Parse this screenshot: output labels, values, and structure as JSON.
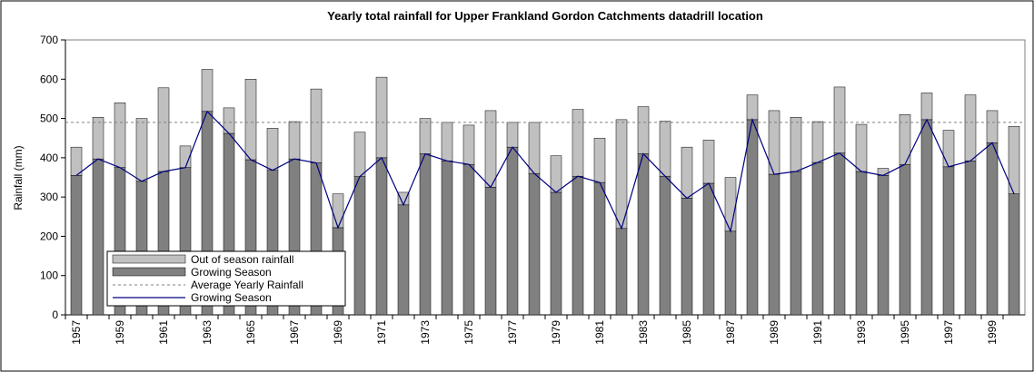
{
  "chart_data": {
    "type": "stacked_bar_line",
    "title": "Yearly total rainfall for Upper Frankland Gordon Catchments datadrill location",
    "ylabel": "Rainfall (mm)",
    "categories": [
      "1957",
      null,
      "1959",
      null,
      "1961",
      null,
      "1963",
      null,
      "1965",
      null,
      "1967",
      null,
      "1969",
      null,
      "1971",
      null,
      "1973",
      null,
      "1975",
      null,
      "1977",
      null,
      "1979",
      null,
      "1981",
      null,
      "1983",
      null,
      "1985",
      null,
      "1987",
      null,
      "1989",
      null,
      "1991",
      null,
      "1993",
      null,
      "1995",
      null,
      "1997",
      null,
      "1999",
      null
    ],
    "series": [
      {
        "name": "Out of season rainfall",
        "kind": "bar",
        "color": "#c0c0c0",
        "values": [
          72,
          106,
          165,
          160,
          213,
          55,
          107,
          65,
          205,
          107,
          95,
          188,
          86,
          113,
          205,
          32,
          90,
          98,
          100,
          195,
          63,
          130,
          93,
          170,
          113,
          277,
          120,
          140,
          130,
          110,
          137,
          63,
          162,
          138,
          104,
          168,
          120,
          18,
          127,
          68,
          93,
          168,
          82,
          172
        ]
      },
      {
        "name": "Growing Season",
        "kind": "bar",
        "color": "#808080",
        "values": [
          355,
          397,
          375,
          340,
          365,
          375,
          518,
          462,
          395,
          368,
          397,
          387,
          222,
          352,
          400,
          280,
          410,
          392,
          383,
          325,
          427,
          360,
          312,
          353,
          337,
          220,
          410,
          353,
          297,
          335,
          213,
          497,
          358,
          365,
          388,
          412,
          365,
          355,
          383,
          497,
          377,
          392,
          438,
          308
        ]
      },
      {
        "name": "Growing Season",
        "kind": "line",
        "color": "#000080",
        "values": [
          355,
          397,
          375,
          340,
          365,
          375,
          518,
          462,
          395,
          368,
          397,
          387,
          222,
          352,
          400,
          280,
          410,
          392,
          383,
          325,
          427,
          360,
          312,
          353,
          337,
          220,
          410,
          353,
          297,
          335,
          213,
          497,
          358,
          365,
          388,
          412,
          365,
          355,
          383,
          497,
          377,
          392,
          438,
          308
        ]
      }
    ],
    "average": {
      "name": "Average Yearly Rainfall",
      "value": 490,
      "color": "#808080"
    },
    "ylim": [
      0,
      700
    ],
    "yticks": [
      0,
      100,
      200,
      300,
      400,
      500,
      600,
      700
    ]
  }
}
